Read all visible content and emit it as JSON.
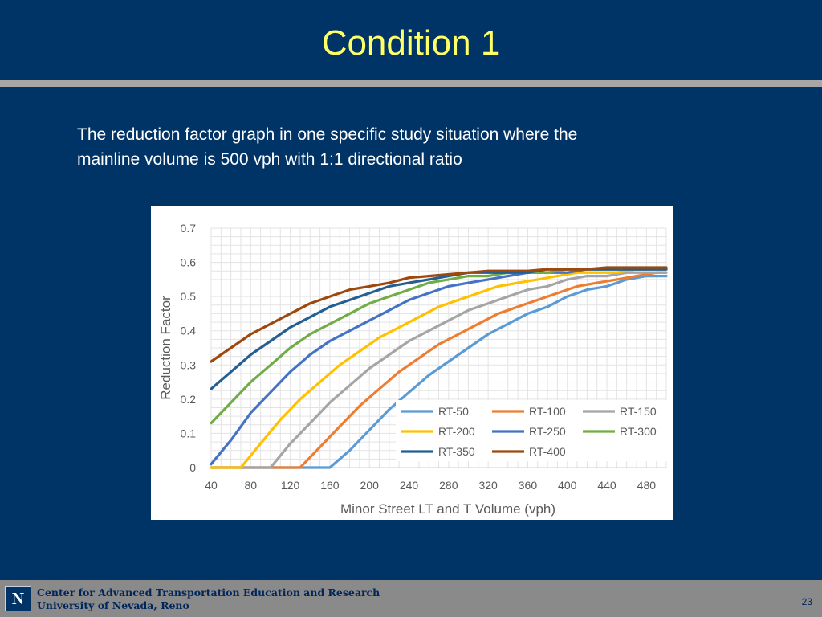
{
  "slide": {
    "title": "Condition 1",
    "body_line1": "The reduction factor graph in one specific study situation where the",
    "body_line2": "mainline volume is 500 vph with 1:1 directional ratio"
  },
  "footer": {
    "logo_text": "N",
    "org_line1": "Center for Advanced Transportation Education and Research",
    "org_line2": "University of Nevada, Reno",
    "page_number": "23"
  },
  "chart_data": {
    "type": "line",
    "xlabel": "Minor Street LT and T Volume (vph)",
    "ylabel": "Reduction Factor",
    "xlim": [
      40,
      500
    ],
    "ylim": [
      0,
      0.7
    ],
    "x_ticks": [
      "40",
      "80",
      "120",
      "160",
      "200",
      "240",
      "280",
      "320",
      "360",
      "400",
      "440",
      "480"
    ],
    "y_ticks": [
      "0",
      "0.1",
      "0.2",
      "0.3",
      "0.4",
      "0.5",
      "0.6",
      "0.7"
    ],
    "grid": true,
    "legend_position": "bottom-right",
    "series": [
      {
        "name": "RT-50",
        "color": "#5b9bd5",
        "x": [
          40,
          160,
          180,
          200,
          220,
          240,
          260,
          280,
          300,
          320,
          340,
          360,
          380,
          400,
          420,
          440,
          460,
          480,
          500
        ],
        "y": [
          0,
          0,
          0.05,
          0.11,
          0.17,
          0.22,
          0.27,
          0.31,
          0.35,
          0.39,
          0.42,
          0.45,
          0.47,
          0.5,
          0.52,
          0.53,
          0.55,
          0.56,
          0.56
        ]
      },
      {
        "name": "RT-100",
        "color": "#ed7d31",
        "x": [
          40,
          130,
          150,
          170,
          190,
          210,
          230,
          250,
          270,
          290,
          310,
          330,
          350,
          370,
          390,
          410,
          430,
          450,
          470,
          490,
          500
        ],
        "y": [
          0,
          0,
          0.06,
          0.12,
          0.18,
          0.23,
          0.28,
          0.32,
          0.36,
          0.39,
          0.42,
          0.45,
          0.47,
          0.49,
          0.51,
          0.53,
          0.54,
          0.55,
          0.56,
          0.57,
          0.57
        ]
      },
      {
        "name": "RT-150",
        "color": "#a5a5a5",
        "x": [
          40,
          100,
          120,
          140,
          160,
          180,
          200,
          220,
          240,
          260,
          280,
          300,
          320,
          340,
          360,
          380,
          400,
          420,
          440,
          460,
          480,
          500
        ],
        "y": [
          0,
          0,
          0.07,
          0.13,
          0.19,
          0.24,
          0.29,
          0.33,
          0.37,
          0.4,
          0.43,
          0.46,
          0.48,
          0.5,
          0.52,
          0.53,
          0.55,
          0.56,
          0.56,
          0.57,
          0.57,
          0.57
        ]
      },
      {
        "name": "RT-200",
        "color": "#ffc000",
        "x": [
          40,
          70,
          90,
          110,
          130,
          150,
          170,
          190,
          210,
          230,
          250,
          270,
          290,
          310,
          330,
          350,
          370,
          390,
          410,
          430,
          450,
          470,
          490,
          500
        ],
        "y": [
          0,
          0,
          0.07,
          0.14,
          0.2,
          0.25,
          0.3,
          0.34,
          0.38,
          0.41,
          0.44,
          0.47,
          0.49,
          0.51,
          0.53,
          0.54,
          0.55,
          0.56,
          0.57,
          0.57,
          0.57,
          0.58,
          0.58,
          0.58
        ]
      },
      {
        "name": "RT-250",
        "color": "#4472c4",
        "x": [
          40,
          60,
          80,
          100,
          120,
          140,
          160,
          180,
          200,
          220,
          240,
          260,
          280,
          300,
          320,
          340,
          360,
          380,
          400,
          420,
          440,
          460,
          480,
          500
        ],
        "y": [
          0.01,
          0.08,
          0.16,
          0.22,
          0.28,
          0.33,
          0.37,
          0.4,
          0.43,
          0.46,
          0.49,
          0.51,
          0.53,
          0.54,
          0.55,
          0.56,
          0.57,
          0.57,
          0.57,
          0.58,
          0.58,
          0.58,
          0.58,
          0.58
        ]
      },
      {
        "name": "RT-300",
        "color": "#70ad47",
        "x": [
          40,
          60,
          80,
          100,
          120,
          140,
          160,
          180,
          200,
          220,
          240,
          260,
          280,
          300,
          320,
          340,
          360,
          380,
          400,
          420,
          440,
          460,
          480,
          500
        ],
        "y": [
          0.13,
          0.19,
          0.25,
          0.3,
          0.35,
          0.39,
          0.42,
          0.45,
          0.48,
          0.5,
          0.52,
          0.54,
          0.55,
          0.56,
          0.56,
          0.57,
          0.57,
          0.57,
          0.58,
          0.58,
          0.58,
          0.58,
          0.58,
          0.58
        ]
      },
      {
        "name": "RT-350",
        "color": "#255e91",
        "x": [
          40,
          60,
          80,
          100,
          120,
          140,
          160,
          180,
          200,
          220,
          240,
          260,
          280,
          300,
          320,
          340,
          360,
          380,
          400,
          420,
          440,
          460,
          480,
          500
        ],
        "y": [
          0.23,
          0.28,
          0.33,
          0.37,
          0.41,
          0.44,
          0.47,
          0.49,
          0.51,
          0.53,
          0.54,
          0.55,
          0.56,
          0.57,
          0.57,
          0.57,
          0.57,
          0.58,
          0.58,
          0.58,
          0.58,
          0.58,
          0.58,
          0.58
        ]
      },
      {
        "name": "RT-400",
        "color": "#9e480e",
        "x": [
          40,
          60,
          80,
          100,
          120,
          140,
          160,
          180,
          200,
          220,
          240,
          260,
          280,
          300,
          320,
          340,
          360,
          380,
          400,
          420,
          440,
          460,
          480,
          500
        ],
        "y": [
          0.31,
          0.35,
          0.39,
          0.42,
          0.45,
          0.48,
          0.5,
          0.52,
          0.53,
          0.54,
          0.555,
          0.56,
          0.565,
          0.57,
          0.575,
          0.575,
          0.575,
          0.58,
          0.58,
          0.58,
          0.585,
          0.585,
          0.585,
          0.585
        ]
      }
    ]
  }
}
